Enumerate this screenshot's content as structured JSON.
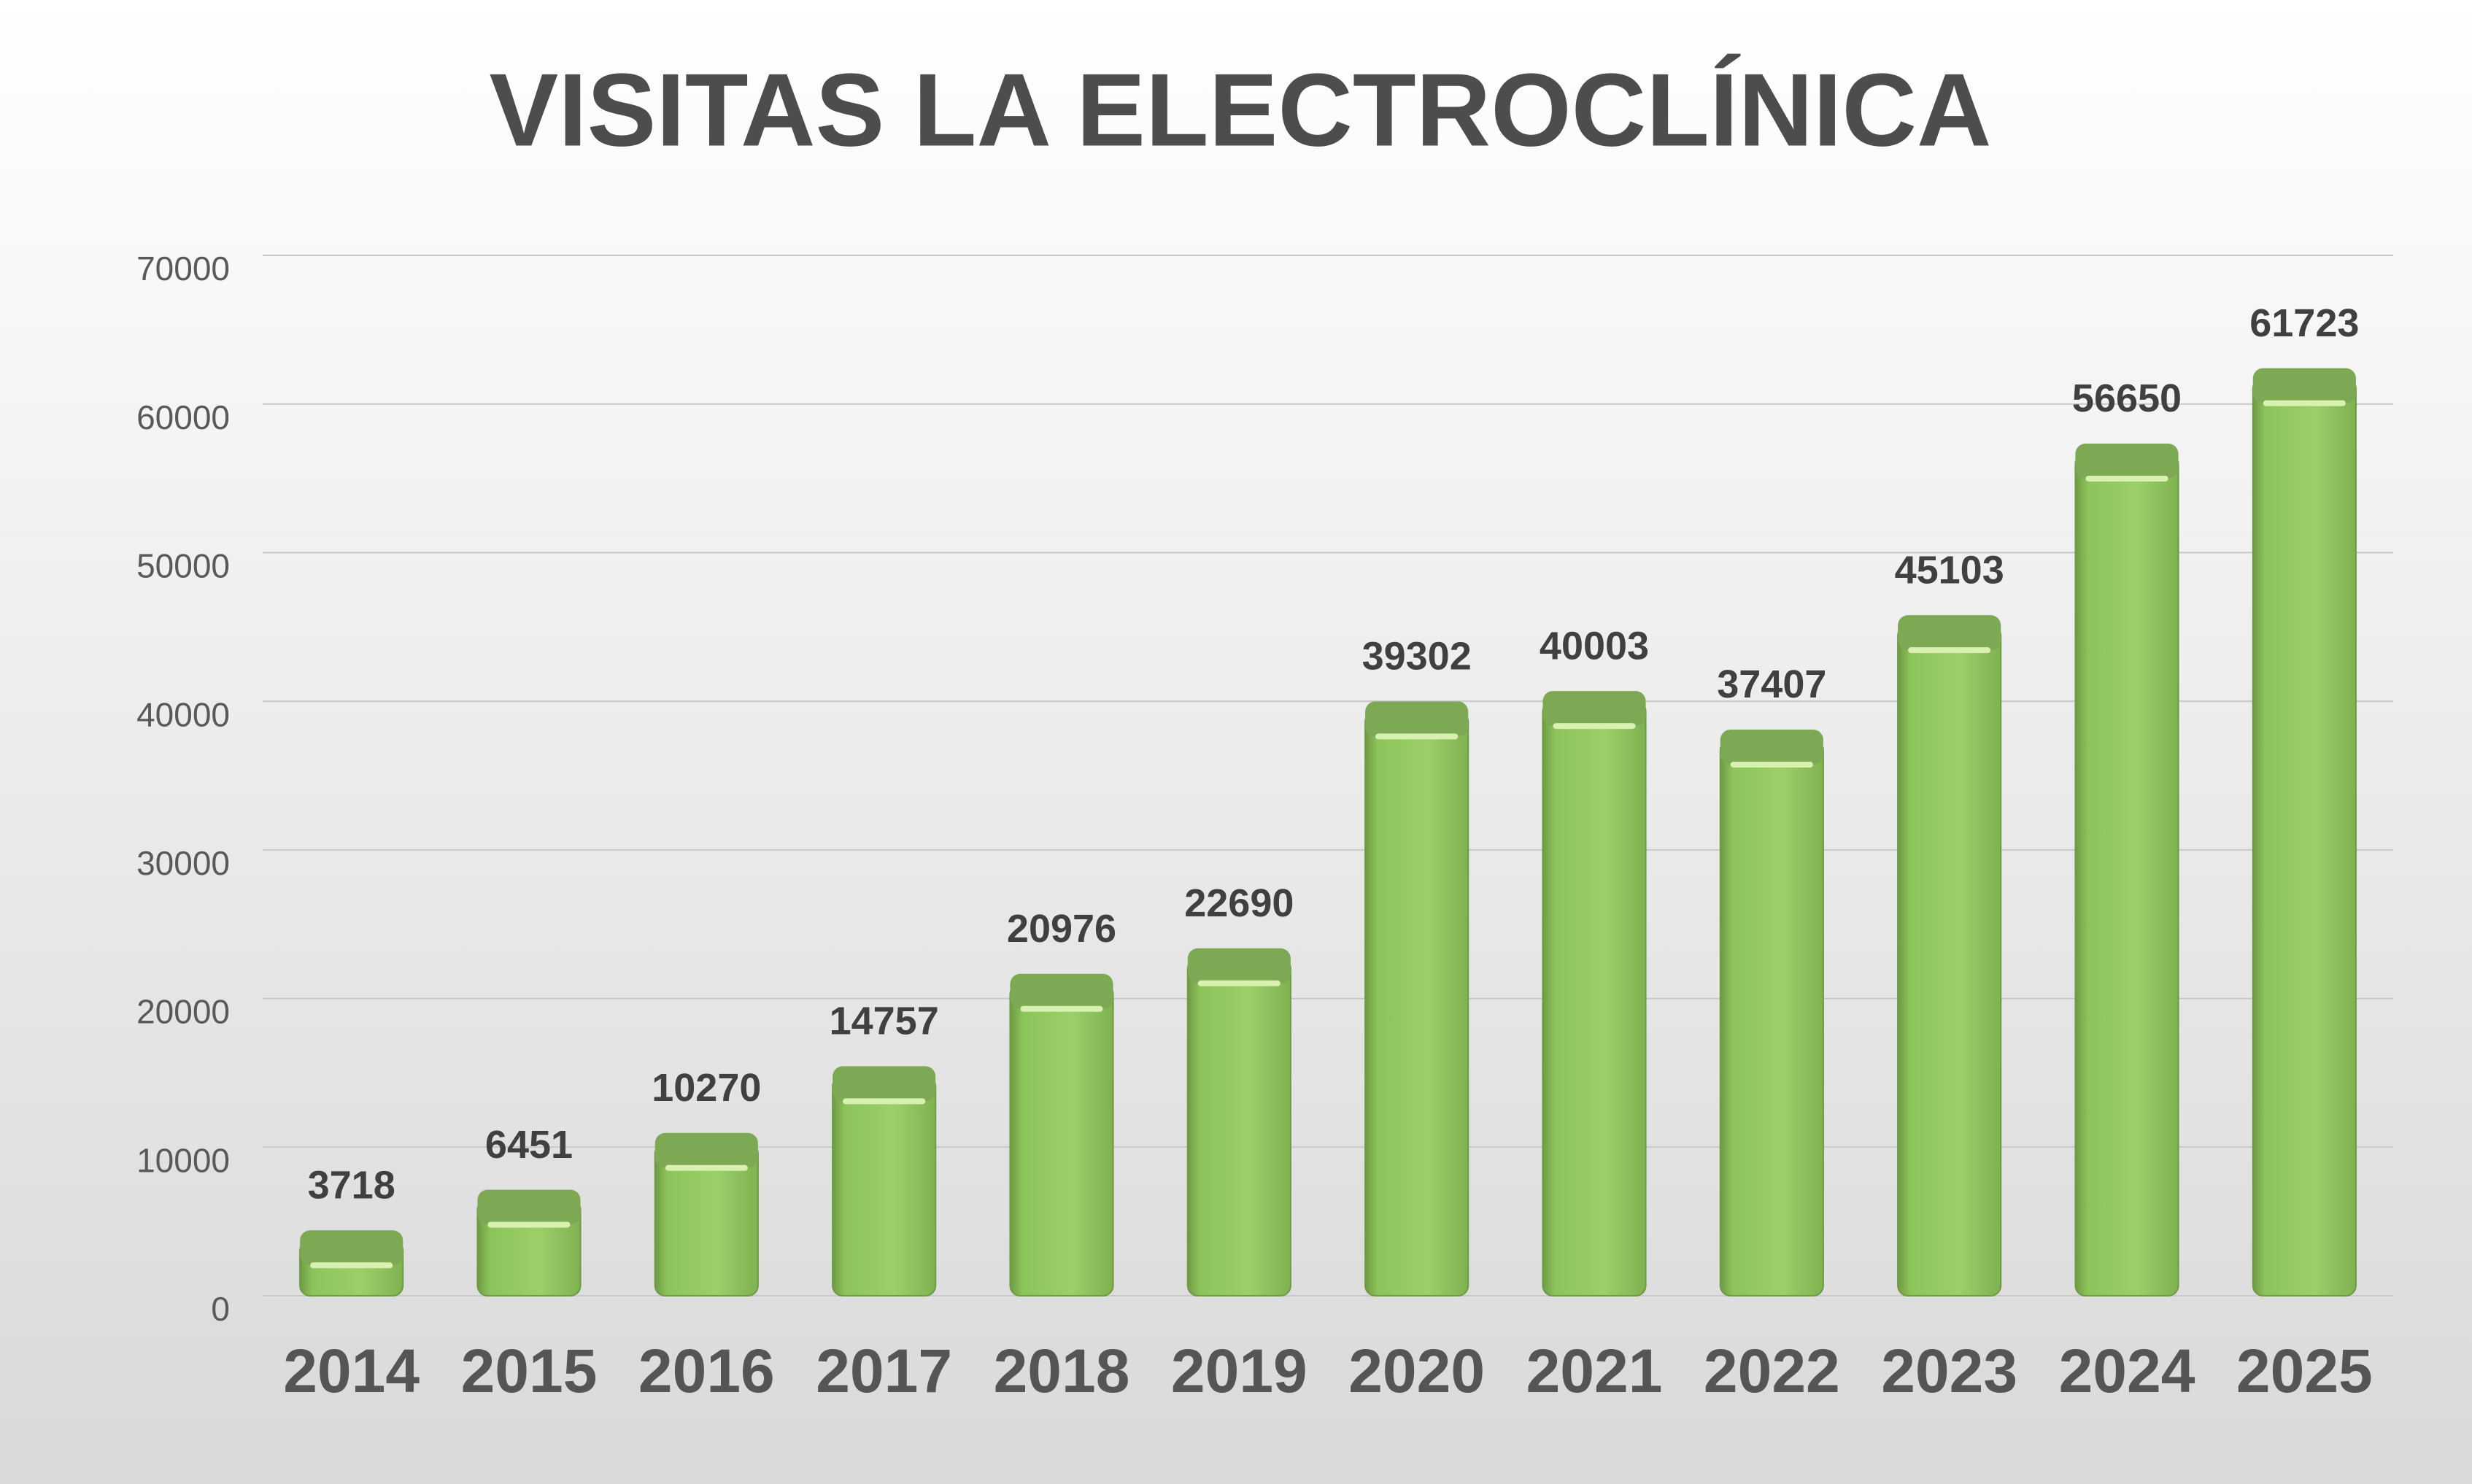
{
  "chart_data": {
    "type": "bar",
    "title": "VISITAS LA ELECTROCLÍNICA",
    "categories": [
      "2014",
      "2015",
      "2016",
      "2017",
      "2018",
      "2019",
      "2020",
      "2021",
      "2022",
      "2023",
      "2024",
      "2025"
    ],
    "values": [
      3718,
      6451,
      10270,
      14757,
      20976,
      22690,
      39302,
      40003,
      37407,
      45103,
      56650,
      61723
    ],
    "color": "#8cc45a",
    "ylim": [
      0,
      70000
    ],
    "yticks": [
      0,
      10000,
      20000,
      30000,
      40000,
      50000,
      60000,
      70000
    ],
    "grid": true
  }
}
